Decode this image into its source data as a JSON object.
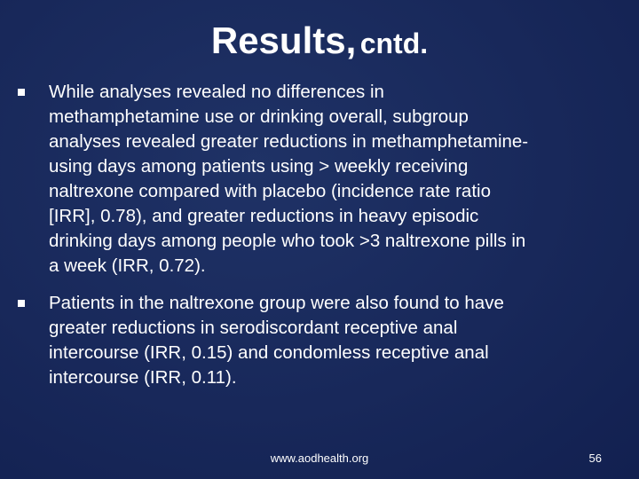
{
  "header": {
    "title_main": "Results,",
    "title_rest": "cntd."
  },
  "bullets": [
    {
      "lines": [
        "While analyses revealed no differences in",
        "methamphetamine use or drinking overall, subgroup",
        "analyses revealed greater reductions in methamphetamine-",
        "using days among patients using > weekly receiving",
        "naltrexone compared with placebo (incidence rate ratio",
        "[IRR], 0.78), and greater reductions in heavy episodic",
        "drinking days among people who took >3 naltrexone pills in",
        "a week (IRR, 0.72)."
      ]
    },
    {
      "lines": [
        "Patients in the naltrexone group were also found to have",
        "greater reductions in serodiscordant receptive anal",
        "intercourse (IRR, 0.15) and condomless receptive anal",
        "intercourse (IRR, 0.11)."
      ]
    }
  ],
  "footer": {
    "url": "www.aodhealth.org",
    "page": 56
  }
}
